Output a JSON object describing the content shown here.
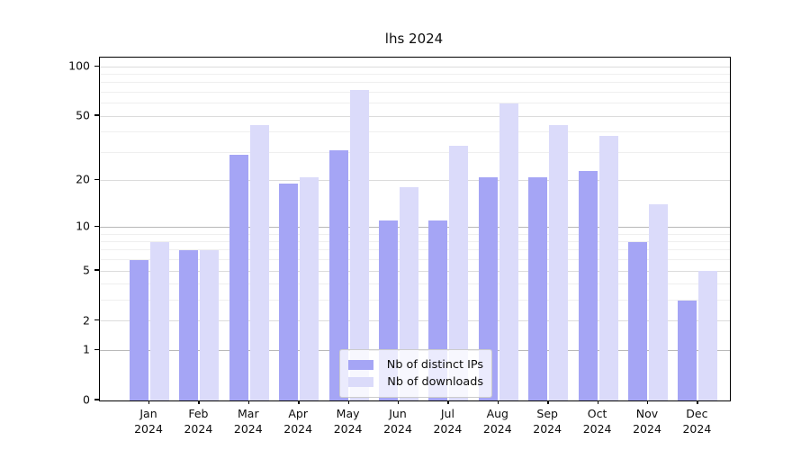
{
  "title": "lhs 2024",
  "chart_data": {
    "type": "bar",
    "title": "lhs 2024",
    "categories": [
      "Jan 2024",
      "Feb 2024",
      "Mar 2024",
      "Apr 2024",
      "May 2024",
      "Jun 2024",
      "Jul 2024",
      "Aug 2024",
      "Sep 2024",
      "Oct 2024",
      "Nov 2024",
      "Dec 2024"
    ],
    "series": [
      {
        "name": "Nb of distinct IPs",
        "color": "#a5a5f5",
        "values": [
          6,
          7,
          29,
          19,
          31,
          11,
          11,
          21,
          21,
          23,
          8,
          3
        ]
      },
      {
        "name": "Nb of downloads",
        "color": "#dbdbfa",
        "values": [
          8,
          7,
          44,
          21,
          72,
          18,
          33,
          60,
          44,
          38,
          14,
          5
        ]
      }
    ],
    "xlabel": "",
    "ylabel": "",
    "yscale": "log1p",
    "yticks": [
      0,
      1,
      2,
      5,
      10,
      20,
      50,
      100
    ],
    "ylim": [
      0,
      113
    ],
    "grid": true,
    "legend_position": "lower-center"
  },
  "colors": {
    "grid_major": "#b8b8b8",
    "grid_labeled": "#dcdcdc",
    "grid_minor": "#efefef",
    "axis": "#000000",
    "text": "#0d0d0d"
  }
}
